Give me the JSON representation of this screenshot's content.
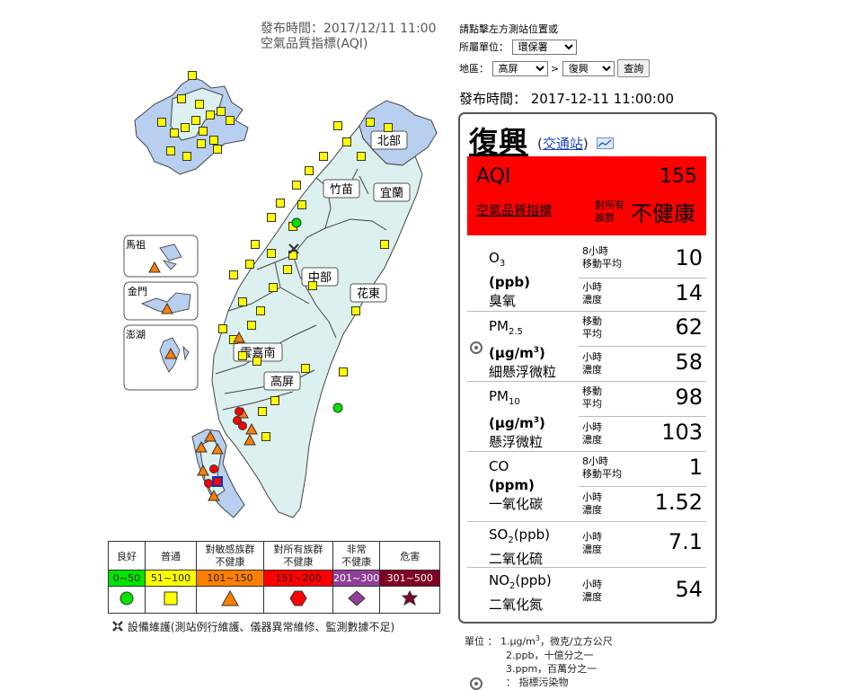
{
  "header": {
    "publish_line": "發布時間：2017/12/11 11:00",
    "index_title": "空氣品質指標(AQI)"
  },
  "controls": {
    "hint": "請點擊左方測站位置或",
    "agency_label": "所屬單位：",
    "agency_value": "環保署",
    "area_label": "地區：",
    "area_value": "高屏",
    "arrow": ">",
    "station_value": "復興",
    "query_button": "查詢"
  },
  "publish_time": "發布時間： 2017-12-11 11:00:00",
  "station": {
    "name": "復興",
    "type_open": "(",
    "type_link": "交通站",
    "type_close": ")",
    "aqi_label": "AQI",
    "aqi_value": "155",
    "aqi_sub": "空氣品質指標",
    "status_small_1": "對所有",
    "status_small_2": "族群",
    "status_big": "不健康",
    "aqi_color": "#ff0000"
  },
  "pollutants": [
    {
      "sym": "O",
      "sub": "3",
      "sup": "",
      "unit": "(ppb)",
      "cn": "臭氧",
      "rows": [
        {
          "l1": "8小時",
          "l2": "移動平均",
          "v": "10"
        },
        {
          "l1": "小時",
          "l2": "濃度",
          "v": "14"
        }
      ]
    },
    {
      "sym": "PM",
      "sub": "2.5",
      "unit_pre": "(μg/m",
      "unit_sup": "3",
      "unit_post": ")",
      "cn": "細懸浮微粒",
      "rows": [
        {
          "l1": "移動",
          "l2": "平均",
          "v": "62"
        },
        {
          "l1": "小時",
          "l2": "濃度",
          "v": "58"
        }
      ]
    },
    {
      "sym": "PM",
      "sub": "10",
      "unit_pre": "(μg/m",
      "unit_sup": "3",
      "unit_post": ")",
      "cn": "懸浮微粒",
      "rows": [
        {
          "l1": "移動",
          "l2": "平均",
          "v": "98"
        },
        {
          "l1": "小時",
          "l2": "濃度",
          "v": "103"
        }
      ]
    },
    {
      "sym": "CO",
      "unit": "(ppm)",
      "cn": "一氧化碳",
      "rows": [
        {
          "l1": "8小時",
          "l2": "移動平均",
          "v": "1"
        },
        {
          "l1": "小時",
          "l2": "濃度",
          "v": "1.52"
        }
      ]
    },
    {
      "sym": "SO",
      "sub": "2",
      "unit_inline": "(ppb)",
      "cn": "二氧化硫",
      "rows": [
        {
          "l1": "小時",
          "l2": "濃度",
          "v": "7.1"
        }
      ]
    },
    {
      "sym": "NO",
      "sub": "2",
      "unit_inline": "(ppb)",
      "cn": "二氧化氮",
      "rows": [
        {
          "l1": "小時",
          "l2": "濃度",
          "v": "54"
        }
      ]
    }
  ],
  "legend": {
    "levels": [
      {
        "name": "良好",
        "range": "0~50",
        "color": "#00e400",
        "shape": "circle"
      },
      {
        "name": "普通",
        "range": "51~100",
        "color": "#ffff00",
        "shape": "square"
      },
      {
        "name": "對敏感族群不健康",
        "name1": "對敏感族群",
        "name2": "不健康",
        "range": "101~150",
        "color": "#ff7e00",
        "shape": "triangle"
      },
      {
        "name": "對所有族群不健康",
        "name1": "對所有族群",
        "name2": "不健康",
        "range": "151~200",
        "color": "#ff0000",
        "shape": "hexagon"
      },
      {
        "name": "非常不健康",
        "name1": "非常",
        "name2": "不健康",
        "range": "201~300",
        "color": "#8f3f97",
        "shape": "diamond"
      },
      {
        "name": "危害",
        "range": "301~500",
        "color": "#7e0023",
        "shape": "star"
      }
    ],
    "maintenance": "設備維護(測站例行維護、儀器異常維修、監測數據不足)"
  },
  "map": {
    "regions": [
      "北部",
      "竹苗",
      "宜蘭",
      "中部",
      "花東",
      "雲嘉南",
      "高屏"
    ],
    "islands": [
      "馬祖",
      "金門",
      "澎湖"
    ]
  },
  "notes": {
    "unit_label": "單位 ：",
    "n1_pre": "1.μg/m",
    "n1_sup": "3",
    "n1_post": "，微克/立方公尺",
    "n2": "2.ppb，十億分之一",
    "n3": "3.ppm，百萬分之一",
    "marker_label": "：  指標污染物"
  }
}
